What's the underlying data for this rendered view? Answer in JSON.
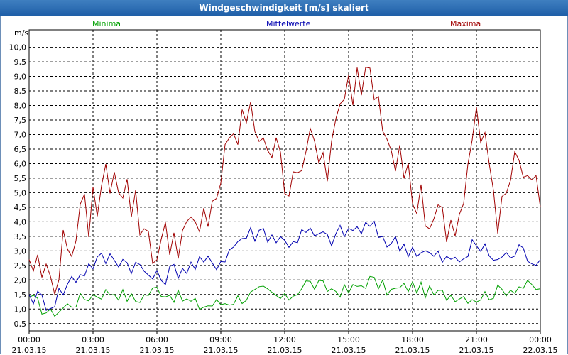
{
  "window": {
    "title": "Windgeschwindigkeit [m/s] skaliert"
  },
  "colors": {
    "minima": "#00a000",
    "mittel": "#0000b0",
    "maxima": "#a00000",
    "grid": "#000000",
    "title_bg": "#2a6bb4"
  },
  "chart_data": {
    "type": "line",
    "title": "Windgeschwindigkeit [m/s] skaliert",
    "ylabel": "m/s",
    "ylim": [
      0.25,
      10.6
    ],
    "xlim_hours": [
      0,
      24
    ],
    "grid": true,
    "legend": [
      "Minima",
      "Mittelwerte",
      "Maxima"
    ],
    "y_ticks": [
      "0,5",
      "1,0",
      "1,5",
      "2,0",
      "2,5",
      "3,0",
      "3,5",
      "4,0",
      "4,5",
      "5,0",
      "5,5",
      "6,0",
      "6,5",
      "7,0",
      "7,5",
      "8,0",
      "8,5",
      "9,0",
      "9,5",
      "10,0"
    ],
    "x_ticks": [
      {
        "time": "00:00",
        "date": "21.03.15"
      },
      {
        "time": "03:00",
        "date": "21.03.15"
      },
      {
        "time": "06:00",
        "date": "21.03.15"
      },
      {
        "time": "09:00",
        "date": "21.03.15"
      },
      {
        "time": "12:00",
        "date": "21.03.15"
      },
      {
        "time": "15:00",
        "date": "21.03.15"
      },
      {
        "time": "18:00",
        "date": "21.03.15"
      },
      {
        "time": "21:00",
        "date": "21.03.15"
      },
      {
        "time": "00:00",
        "date": "22.03.15"
      }
    ],
    "series": [
      {
        "name": "Minima",
        "x": [
          0,
          1,
          2,
          3,
          4,
          5,
          6,
          7,
          8,
          9,
          10,
          11,
          12,
          13,
          14,
          15,
          16,
          17,
          18,
          19,
          20,
          21,
          22,
          23,
          24
        ],
        "values": [
          1.4,
          0.8,
          1.2,
          1.5,
          1.6,
          1.3,
          1.7,
          1.4,
          1.1,
          1.2,
          1.4,
          1.6,
          1.3,
          1.9,
          1.7,
          1.6,
          2.0,
          1.6,
          1.8,
          1.5,
          1.5,
          1.4,
          1.6,
          1.8,
          1.7
        ]
      },
      {
        "name": "Mittelwerte",
        "x": [
          0,
          1,
          2,
          3,
          4,
          5,
          6,
          7,
          8,
          9,
          10,
          11,
          12,
          13,
          14,
          15,
          16,
          17,
          18,
          19,
          20,
          21,
          22,
          23,
          24
        ],
        "values": [
          1.5,
          1.2,
          2.0,
          2.6,
          2.8,
          2.5,
          2.0,
          2.4,
          2.5,
          2.7,
          3.5,
          3.7,
          3.3,
          3.6,
          3.4,
          3.7,
          3.8,
          3.3,
          3.1,
          2.8,
          2.6,
          3.2,
          2.7,
          3.0,
          2.7
        ]
      },
      {
        "name": "Maxima",
        "x": [
          0,
          1,
          2,
          3,
          4,
          5,
          6,
          7,
          8,
          9,
          10,
          11,
          12,
          13,
          14,
          15,
          16,
          17,
          18,
          19,
          20,
          21,
          22,
          23,
          24
        ],
        "values": [
          2.7,
          2.0,
          3.5,
          4.5,
          6.0,
          4.4,
          3.0,
          3.6,
          3.5,
          5.5,
          7.5,
          7.2,
          5.5,
          6.5,
          6.0,
          8.5,
          9.5,
          7.0,
          5.0,
          4.0,
          3.5,
          7.5,
          4.4,
          6.7,
          4.5
        ]
      }
    ]
  }
}
